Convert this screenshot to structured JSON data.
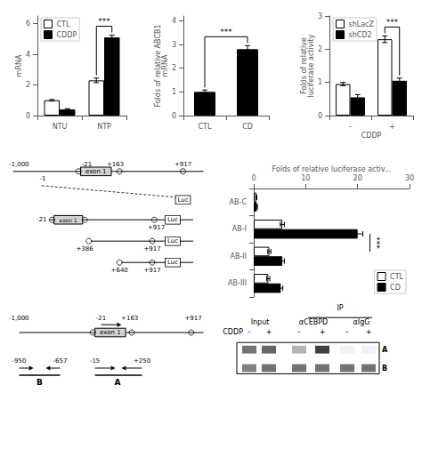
{
  "chart_data": [
    {
      "type": "bar",
      "categories": [
        "NTU",
        "NTP"
      ],
      "series": [
        {
          "name": "CTL",
          "color": "#ffffff",
          "values": [
            1.0,
            2.3
          ],
          "errors": [
            0.05,
            0.15
          ]
        },
        {
          "name": "CDDP",
          "color": "#000000",
          "values": [
            0.4,
            5.1
          ],
          "errors": [
            0.05,
            0.15
          ]
        }
      ],
      "ylabel": "mRNA",
      "ylim": [
        0,
        6.5
      ],
      "yticks": [
        0,
        2,
        4,
        6
      ],
      "legend": "upper left",
      "grid": false,
      "annotations": [
        {
          "text": "***",
          "category": "NTP"
        }
      ]
    },
    {
      "type": "bar",
      "categories": [
        "CTL",
        "CD"
      ],
      "series": [
        {
          "color": "#000000",
          "values": [
            1.0,
            2.8
          ],
          "errors": [
            0.08,
            0.15
          ]
        }
      ],
      "ylabel": "Folds of relative ABCB1\nmRNA",
      "ylim": [
        0,
        4.2
      ],
      "yticks": [
        0,
        1,
        2,
        3,
        4
      ],
      "grid": false,
      "annotations": [
        {
          "text": "***",
          "categories": [
            "CTL",
            "CD"
          ]
        }
      ]
    },
    {
      "type": "bar",
      "categories": [
        "-",
        "+"
      ],
      "series": [
        {
          "name": "shLacZ",
          "color": "#ffffff",
          "values": [
            0.95,
            2.3
          ],
          "errors": [
            0.05,
            0.1
          ]
        },
        {
          "name": "shCD2",
          "color": "#000000",
          "values": [
            0.55,
            1.05
          ],
          "errors": [
            0.08,
            0.08
          ]
        }
      ],
      "xlabel": "CDDP",
      "ylabel": "Folds of relative\nluciferase activity",
      "ylim": [
        0,
        3.0
      ],
      "yticks": [
        0,
        1,
        2,
        3
      ],
      "legend": "upper left",
      "grid": false,
      "annotations": [
        {
          "text": "***",
          "category": "+"
        }
      ]
    },
    {
      "type": "bar",
      "orientation": "horizontal",
      "categories": [
        "AB-C",
        "AB-I",
        "AB-II",
        "AB-III"
      ],
      "series": [
        {
          "name": "CTL",
          "color": "#ffffff",
          "values": [
            0.5,
            5.5,
            3.0,
            2.8
          ],
          "errors": [
            0.1,
            0.4,
            0.3,
            0.3
          ]
        },
        {
          "name": "CD",
          "color": "#000000",
          "values": [
            0.6,
            20.0,
            5.5,
            5.2
          ],
          "errors": [
            0.1,
            1.0,
            0.4,
            0.4
          ]
        }
      ],
      "xlabel": "Folds of relative luciferase activ...",
      "xlim": [
        0,
        30
      ],
      "xticks": [
        0,
        10,
        20,
        30
      ],
      "legend": "lower right",
      "grid": false,
      "annotations": [
        {
          "text": "***",
          "categories": [
            "AB-I",
            "AB-II"
          ]
        }
      ]
    }
  ],
  "diagrams": [
    {
      "labels": [
        "-1,000",
        "-21",
        "+163",
        "+917",
        "exon 1",
        "-1",
        "Luc",
        "-21",
        "+917",
        "exon 1",
        "Luc",
        "+386",
        "+917",
        "Luc",
        "+640",
        "+917",
        "Luc"
      ]
    },
    {
      "labels": [
        "-1,000",
        "-21",
        "+163",
        "+917",
        "exon 1",
        "A",
        "-15",
        "+250",
        "B",
        "-950",
        "-657"
      ]
    }
  ],
  "gel": {
    "header": "IP",
    "columns": [
      "Input",
      "αCEBPD",
      "αIgG"
    ],
    "row_label": "CDDP",
    "lanes": [
      "-",
      "+",
      "-",
      "+",
      "-",
      "+"
    ],
    "bands": [
      {
        "name": "A",
        "intensity": [
          0.55,
          0.6,
          0.3,
          0.75,
          0.05,
          0.05
        ]
      },
      {
        "name": "B",
        "intensity": [
          0.5,
          0.55,
          0.55,
          0.55,
          0.55,
          0.55
        ]
      }
    ]
  }
}
